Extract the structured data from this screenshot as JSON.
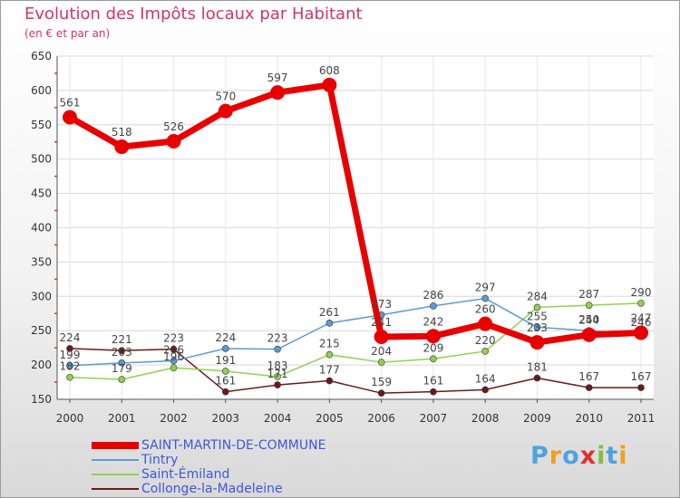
{
  "chart_data": {
    "type": "line",
    "title": "Evolution des Impôts locaux par Habitant",
    "subtitle": "(en € et par an)",
    "xlabel": "",
    "ylabel": "",
    "ylim": [
      150,
      650
    ],
    "yticks": [
      150,
      200,
      250,
      300,
      350,
      400,
      450,
      500,
      550,
      600,
      650
    ],
    "categories": [
      "2000",
      "2001",
      "2002",
      "2003",
      "2004",
      "2005",
      "2006",
      "2007",
      "2008",
      "2009",
      "2010",
      "2011"
    ],
    "series": [
      {
        "name": "SAINT-MARTIN-DE-COMMUNE",
        "color": "#e80000",
        "values": [
          561,
          518,
          526,
          570,
          597,
          608,
          241,
          242,
          260,
          233,
          244,
          247
        ]
      },
      {
        "name": "Tintry",
        "color": "#5b9bd5",
        "values": [
          199,
          203,
          206,
          224,
          223,
          261,
          273,
          286,
          297,
          255,
          250,
          246
        ]
      },
      {
        "name": "Saint-Émiland",
        "color": "#92d050",
        "values": [
          182,
          179,
          196,
          191,
          183,
          215,
          204,
          209,
          220,
          284,
          287,
          290
        ]
      },
      {
        "name": "Collonge-la-Madeleine",
        "color": "#6b1a1a",
        "values": [
          224,
          221,
          223,
          161,
          171,
          177,
          159,
          161,
          164,
          181,
          167,
          167
        ]
      }
    ],
    "legend_position": "bottom-left"
  },
  "brand": {
    "letters": [
      "P",
      "r",
      "o",
      "x",
      "i",
      "t",
      "i"
    ],
    "colors": [
      "#4fa3e0",
      "#f0a020",
      "#4fa3e0",
      "#e03030",
      "#80c040",
      "#4fa3e0",
      "#f0a020"
    ]
  }
}
